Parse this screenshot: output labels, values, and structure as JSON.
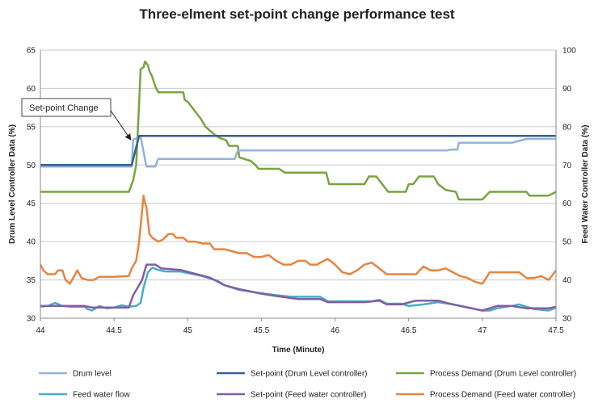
{
  "chart_data": {
    "type": "line",
    "title": "Three-elment set-point change performance test",
    "xlabel": "Time (Minute)",
    "ylabel_left": "Drum Level Controller Data (%)",
    "ylabel_right": "Feed Water Controller Data (%)",
    "xlim": [
      44,
      47.5
    ],
    "ylim_left": [
      30,
      65
    ],
    "ylim_right": [
      30,
      100
    ],
    "x_ticks": [
      "44",
      "44.5",
      "45",
      "45.5",
      "46",
      "46.5",
      "47",
      "47.5"
    ],
    "y_ticks_left": [
      "30",
      "35",
      "40",
      "45",
      "50",
      "55",
      "60",
      "65"
    ],
    "y_ticks_right": [
      "30",
      "40",
      "50",
      "60",
      "70",
      "80",
      "90",
      "100"
    ],
    "grid": "horizontal",
    "legend_position": "bottom",
    "annotation": {
      "text": "Set-point Change",
      "x": 44.63,
      "y": 53.5
    },
    "series": [
      {
        "name": "Drum level",
        "color": "#95B3D7",
        "axis": "left",
        "points": [
          [
            44,
            49.8
          ],
          [
            44.62,
            49.8
          ],
          [
            44.63,
            53.3
          ],
          [
            44.68,
            53.7
          ],
          [
            44.72,
            49.8
          ],
          [
            44.78,
            49.8
          ],
          [
            44.8,
            50.8
          ],
          [
            45.32,
            50.8
          ],
          [
            45.34,
            51.9
          ],
          [
            46.76,
            51.9
          ],
          [
            46.78,
            52.0
          ],
          [
            46.83,
            52.0
          ],
          [
            46.84,
            52.9
          ],
          [
            47.2,
            52.9
          ],
          [
            47.3,
            53.4
          ],
          [
            47.5,
            53.4
          ]
        ]
      },
      {
        "name": "Set-point (Drum Level controller)",
        "color": "#376092",
        "axis": "left",
        "points": [
          [
            44,
            50
          ],
          [
            44.62,
            50
          ],
          [
            44.67,
            53.8
          ],
          [
            47.5,
            53.8
          ]
        ]
      },
      {
        "name": "Process Demand (Drum Level controller)",
        "color": "#77A53E",
        "axis": "right",
        "points": [
          [
            44,
            63
          ],
          [
            44.6,
            63
          ],
          [
            44.63,
            66
          ],
          [
            44.65,
            70
          ],
          [
            44.67,
            86
          ],
          [
            44.68,
            95
          ],
          [
            44.7,
            95.5
          ],
          [
            44.71,
            97
          ],
          [
            44.73,
            96
          ],
          [
            44.74,
            94.5
          ],
          [
            44.76,
            93
          ],
          [
            44.78,
            90.5
          ],
          [
            44.8,
            89
          ],
          [
            44.97,
            89
          ],
          [
            44.98,
            87
          ],
          [
            45.0,
            86.5
          ],
          [
            45.05,
            84
          ],
          [
            45.09,
            82
          ],
          [
            45.12,
            80
          ],
          [
            45.15,
            79
          ],
          [
            45.18,
            78
          ],
          [
            45.22,
            77
          ],
          [
            45.26,
            76.5
          ],
          [
            45.28,
            75
          ],
          [
            45.34,
            75
          ],
          [
            45.35,
            72
          ],
          [
            45.43,
            71
          ],
          [
            45.46,
            70
          ],
          [
            45.48,
            69
          ],
          [
            45.62,
            69
          ],
          [
            45.66,
            68
          ],
          [
            45.94,
            68
          ],
          [
            45.96,
            65
          ],
          [
            46.2,
            65
          ],
          [
            46.23,
            67
          ],
          [
            46.28,
            67
          ],
          [
            46.32,
            65
          ],
          [
            46.36,
            63
          ],
          [
            46.48,
            63
          ],
          [
            46.5,
            65
          ],
          [
            46.53,
            65
          ],
          [
            46.57,
            67
          ],
          [
            46.67,
            67
          ],
          [
            46.7,
            65
          ],
          [
            46.75,
            63.5
          ],
          [
            46.82,
            63
          ],
          [
            46.84,
            61
          ],
          [
            47.0,
            61
          ],
          [
            47.05,
            63
          ],
          [
            47.3,
            63
          ],
          [
            47.32,
            62
          ],
          [
            47.45,
            62
          ],
          [
            47.5,
            63
          ]
        ]
      },
      {
        "name": "Feed water flow",
        "color": "#4BACC6",
        "axis": "left",
        "points": [
          [
            44,
            31.5
          ],
          [
            44.05,
            31.6
          ],
          [
            44.1,
            32
          ],
          [
            44.15,
            31.6
          ],
          [
            44.2,
            31.5
          ],
          [
            44.3,
            31.5
          ],
          [
            44.32,
            31.2
          ],
          [
            44.35,
            31.0
          ],
          [
            44.4,
            31.6
          ],
          [
            44.45,
            31.3
          ],
          [
            44.5,
            31.4
          ],
          [
            44.55,
            31.7
          ],
          [
            44.6,
            31.5
          ],
          [
            44.65,
            31.6
          ],
          [
            44.68,
            32
          ],
          [
            44.7,
            34
          ],
          [
            44.73,
            36
          ],
          [
            44.76,
            36.6
          ],
          [
            44.8,
            36.3
          ],
          [
            44.85,
            36.1
          ],
          [
            44.95,
            36.1
          ],
          [
            45.05,
            35.7
          ],
          [
            45.1,
            35.5
          ],
          [
            45.15,
            35.2
          ],
          [
            45.2,
            34.9
          ],
          [
            45.25,
            34.3
          ],
          [
            45.35,
            33.7
          ],
          [
            45.45,
            33.4
          ],
          [
            45.6,
            33.0
          ],
          [
            45.7,
            32.8
          ],
          [
            45.9,
            32.8
          ],
          [
            45.95,
            32.2
          ],
          [
            46.2,
            32.2
          ],
          [
            46.25,
            32.2
          ],
          [
            46.3,
            32.4
          ],
          [
            46.35,
            31.9
          ],
          [
            46.45,
            31.9
          ],
          [
            46.5,
            31.6
          ],
          [
            46.6,
            31.8
          ],
          [
            46.7,
            32.1
          ],
          [
            46.8,
            31.8
          ],
          [
            46.9,
            31.4
          ],
          [
            47.0,
            31.0
          ],
          [
            47.05,
            31.0
          ],
          [
            47.1,
            31.3
          ],
          [
            47.2,
            31.6
          ],
          [
            47.25,
            31.8
          ],
          [
            47.3,
            31.5
          ],
          [
            47.35,
            31.2
          ],
          [
            47.45,
            31.0
          ],
          [
            47.5,
            31.4
          ]
        ]
      },
      {
        "name": "Set-point (Feed water controller)",
        "color": "#7F5FA6",
        "axis": "left",
        "points": [
          [
            44,
            31.6
          ],
          [
            44.3,
            31.6
          ],
          [
            44.35,
            31.4
          ],
          [
            44.6,
            31.4
          ],
          [
            44.63,
            33
          ],
          [
            44.66,
            34
          ],
          [
            44.69,
            35
          ],
          [
            44.72,
            37
          ],
          [
            44.78,
            37
          ],
          [
            44.82,
            36.5
          ],
          [
            44.95,
            36.3
          ],
          [
            45.05,
            35.8
          ],
          [
            45.15,
            35.3
          ],
          [
            45.25,
            34.3
          ],
          [
            45.35,
            33.8
          ],
          [
            45.5,
            33.2
          ],
          [
            45.6,
            32.9
          ],
          [
            45.75,
            32.5
          ],
          [
            45.9,
            32.5
          ],
          [
            45.95,
            32.1
          ],
          [
            46.2,
            32.1
          ],
          [
            46.3,
            32.3
          ],
          [
            46.35,
            31.8
          ],
          [
            46.45,
            31.8
          ],
          [
            46.55,
            32.3
          ],
          [
            46.7,
            32.3
          ],
          [
            46.8,
            31.8
          ],
          [
            47.0,
            31.0
          ],
          [
            47.1,
            31.6
          ],
          [
            47.2,
            31.6
          ],
          [
            47.3,
            31.3
          ],
          [
            47.45,
            31.3
          ],
          [
            47.5,
            31.5
          ]
        ]
      },
      {
        "name": "Process Demand (Feed water controller)",
        "color": "#E7843F",
        "axis": "right",
        "points": [
          [
            44,
            44
          ],
          [
            44.02,
            42.5
          ],
          [
            44.05,
            41.5
          ],
          [
            44.1,
            41.5
          ],
          [
            44.12,
            42.5
          ],
          [
            44.15,
            42.5
          ],
          [
            44.17,
            40
          ],
          [
            44.2,
            39
          ],
          [
            44.23,
            41
          ],
          [
            44.25,
            42.5
          ],
          [
            44.28,
            40.5
          ],
          [
            44.32,
            40
          ],
          [
            44.36,
            40
          ],
          [
            44.4,
            40.8
          ],
          [
            44.5,
            40.8
          ],
          [
            44.6,
            41
          ],
          [
            44.62,
            43
          ],
          [
            44.65,
            45
          ],
          [
            44.67,
            50
          ],
          [
            44.69,
            58
          ],
          [
            44.7,
            62
          ],
          [
            44.71,
            60
          ],
          [
            44.72,
            59
          ],
          [
            44.74,
            52
          ],
          [
            44.76,
            51
          ],
          [
            44.8,
            50
          ],
          [
            44.83,
            50.5
          ],
          [
            44.87,
            52
          ],
          [
            44.9,
            52
          ],
          [
            44.92,
            51
          ],
          [
            44.95,
            51
          ],
          [
            44.97,
            51
          ],
          [
            45.0,
            50
          ],
          [
            45.05,
            50
          ],
          [
            45.1,
            49.5
          ],
          [
            45.15,
            49.5
          ],
          [
            45.18,
            48
          ],
          [
            45.25,
            48
          ],
          [
            45.3,
            47.5
          ],
          [
            45.35,
            47
          ],
          [
            45.4,
            47
          ],
          [
            45.45,
            46
          ],
          [
            45.5,
            46
          ],
          [
            45.55,
            46.5
          ],
          [
            45.6,
            45
          ],
          [
            45.65,
            44
          ],
          [
            45.7,
            44
          ],
          [
            45.75,
            45
          ],
          [
            45.8,
            45
          ],
          [
            45.83,
            44
          ],
          [
            45.88,
            44
          ],
          [
            45.9,
            44.5
          ],
          [
            45.95,
            45.5
          ],
          [
            46.0,
            44
          ],
          [
            46.05,
            42
          ],
          [
            46.1,
            41.5
          ],
          [
            46.15,
            42.5
          ],
          [
            46.2,
            44
          ],
          [
            46.25,
            44.5
          ],
          [
            46.3,
            43
          ],
          [
            46.35,
            41.5
          ],
          [
            46.55,
            41.5
          ],
          [
            46.6,
            43.5
          ],
          [
            46.65,
            42.5
          ],
          [
            46.7,
            42.5
          ],
          [
            46.75,
            43
          ],
          [
            46.8,
            42
          ],
          [
            46.85,
            41
          ],
          [
            46.9,
            40.5
          ],
          [
            46.95,
            39.5
          ],
          [
            47.0,
            39
          ],
          [
            47.05,
            42
          ],
          [
            47.25,
            42
          ],
          [
            47.3,
            40.5
          ],
          [
            47.35,
            40.5
          ],
          [
            47.4,
            41
          ],
          [
            47.45,
            40
          ],
          [
            47.5,
            42.5
          ]
        ]
      }
    ]
  }
}
